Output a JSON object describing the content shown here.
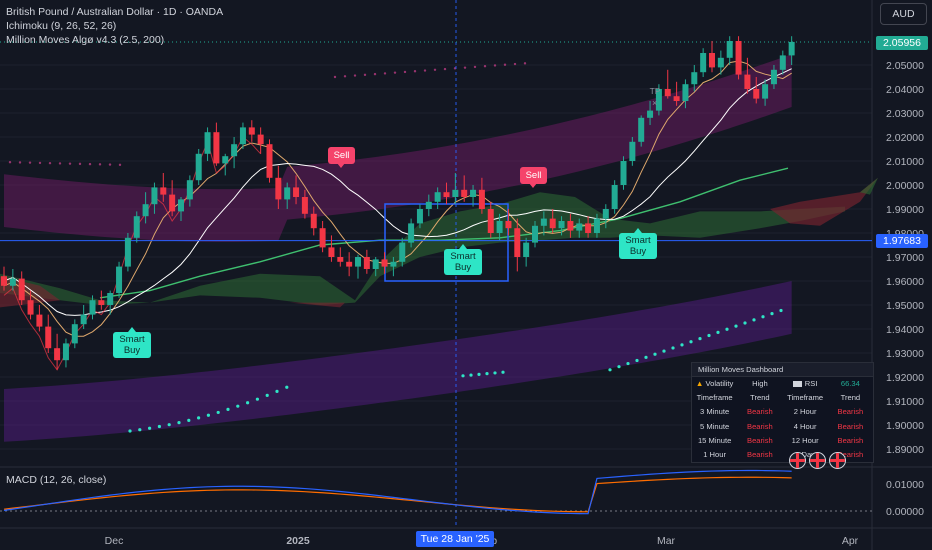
{
  "header": {
    "symbol_line": "British Pound / Australian Dollar · 1D · OANDA",
    "indicator_1": "Ichimoku (9, 26, 52, 26)",
    "indicator_2": "Million Moves Algø v4.3 (2.5, 200)",
    "currency_button": "AUD"
  },
  "macd": {
    "label": "MACD (12, 26, close)"
  },
  "crosshair": {
    "time_label": "Tue 28 Jan '25",
    "price_label": "1.97683",
    "price": 1.97683
  },
  "last_price": {
    "label": "2.05956",
    "value": 2.05956
  },
  "signals": {
    "buy_label_line1": "Smart",
    "buy_label_line2": "Buy",
    "sell_label": "Sell",
    "tp_label": "TP"
  },
  "dashboard": {
    "title": "Million Moves  Dashboard",
    "volatility_label": "Volatility",
    "volatility_value": "High",
    "rsi_label": "RSI",
    "rsi_value": "66.34",
    "col_timeframe": "Timeframe",
    "col_trend": "Trend",
    "rows": [
      {
        "tf1": "3 Minute",
        "t1": "Bearish",
        "tf2": "2 Hour",
        "t2": "Bearish"
      },
      {
        "tf1": "5 Minute",
        "t1": "Bearish",
        "tf2": "4 Hour",
        "t2": "Bearish"
      },
      {
        "tf1": "15 Minute",
        "t1": "Bearish",
        "tf2": "12 Hour",
        "t2": "Bearish"
      },
      {
        "tf1": "1 Hour",
        "t1": "Bearish",
        "tf2": "1 Day",
        "t2": "Bearish"
      }
    ]
  },
  "colors": {
    "bull": "#22ab94",
    "bear": "#f23645",
    "cloud_bull": "#2e6b34",
    "cloud_bear": "#7a2430",
    "band": "#8e1e7a",
    "accent": "#2962ff"
  },
  "chart_data": {
    "type": "candlestick",
    "price_axis": {
      "ticks": [
        "2.05000",
        "2.04000",
        "2.03000",
        "2.02000",
        "2.01000",
        "2.00000",
        "1.99000",
        "1.98000",
        "1.97000",
        "1.96000",
        "1.95000",
        "1.94000",
        "1.93000",
        "1.92000",
        "1.91000",
        "1.90000",
        "1.89000"
      ],
      "ylim": [
        1.883,
        2.063
      ]
    },
    "macd_axis": {
      "ticks": [
        "0.01000",
        "0.00000"
      ],
      "ylim": [
        -0.005,
        0.016
      ]
    },
    "time_axis": {
      "labels": [
        "Dec",
        "2025",
        "Feb",
        "Mar",
        "Apr"
      ]
    },
    "candles": [
      [
        1.962,
        1.966,
        1.956,
        1.958
      ],
      [
        1.958,
        1.965,
        1.956,
        1.961
      ],
      [
        1.961,
        1.964,
        1.95,
        1.952
      ],
      [
        1.952,
        1.956,
        1.944,
        1.946
      ],
      [
        1.946,
        1.95,
        1.939,
        1.941
      ],
      [
        1.941,
        1.946,
        1.93,
        1.932
      ],
      [
        1.932,
        1.938,
        1.923,
        1.927
      ],
      [
        1.927,
        1.936,
        1.924,
        1.934
      ],
      [
        1.934,
        1.944,
        1.932,
        1.942
      ],
      [
        1.942,
        1.95,
        1.94,
        1.946
      ],
      [
        1.946,
        1.954,
        1.944,
        1.952
      ],
      [
        1.952,
        1.956,
        1.948,
        1.95
      ],
      [
        1.95,
        1.956,
        1.946,
        1.955
      ],
      [
        1.955,
        1.968,
        1.953,
        1.966
      ],
      [
        1.966,
        1.98,
        1.964,
        1.978
      ],
      [
        1.978,
        1.989,
        1.976,
        1.987
      ],
      [
        1.987,
        1.997,
        1.984,
        1.992
      ],
      [
        1.992,
        2.001,
        1.988,
        1.999
      ],
      [
        1.999,
        2.005,
        1.993,
        1.996
      ],
      [
        1.996,
        2.002,
        1.987,
        1.989
      ],
      [
        1.989,
        1.995,
        1.985,
        1.994
      ],
      [
        1.994,
        2.004,
        1.991,
        2.002
      ],
      [
        2.002,
        2.015,
        2.0,
        2.013
      ],
      [
        2.013,
        2.024,
        2.01,
        2.022
      ],
      [
        2.022,
        2.026,
        2.008,
        2.009
      ],
      [
        2.009,
        2.013,
        2.004,
        2.012
      ],
      [
        2.012,
        2.02,
        2.007,
        2.017
      ],
      [
        2.017,
        2.026,
        2.015,
        2.024
      ],
      [
        2.024,
        2.027,
        2.018,
        2.021
      ],
      [
        2.021,
        2.024,
        2.013,
        2.017
      ],
      [
        2.017,
        2.019,
        2.001,
        2.003
      ],
      [
        2.003,
        2.008,
        1.99,
        1.994
      ],
      [
        1.994,
        2.001,
        1.99,
        1.999
      ],
      [
        1.999,
        2.004,
        1.992,
        1.995
      ],
      [
        1.995,
        1.998,
        1.986,
        1.988
      ],
      [
        1.988,
        1.991,
        1.979,
        1.982
      ],
      [
        1.982,
        1.985,
        1.972,
        1.974
      ],
      [
        1.974,
        1.979,
        1.968,
        1.97
      ],
      [
        1.97,
        1.974,
        1.966,
        1.968
      ],
      [
        1.968,
        1.972,
        1.962,
        1.966
      ],
      [
        1.966,
        1.971,
        1.961,
        1.97
      ],
      [
        1.97,
        1.973,
        1.963,
        1.965
      ],
      [
        1.965,
        1.97,
        1.962,
        1.969
      ],
      [
        1.969,
        1.972,
        1.963,
        1.966
      ],
      [
        1.966,
        1.97,
        1.962,
        1.968
      ],
      [
        1.968,
        1.978,
        1.966,
        1.976
      ],
      [
        1.976,
        1.986,
        1.974,
        1.984
      ],
      [
        1.984,
        1.992,
        1.982,
        1.99
      ],
      [
        1.99,
        1.996,
        1.987,
        1.993
      ],
      [
        1.993,
        1.999,
        1.99,
        1.997
      ],
      [
        1.997,
        2.001,
        1.992,
        1.995
      ],
      [
        1.995,
        2.005,
        1.992,
        1.998
      ],
      [
        1.998,
        2.004,
        1.993,
        1.995
      ],
      [
        1.995,
        2.0,
        1.991,
        1.998
      ],
      [
        1.998,
        2.003,
        1.988,
        1.99
      ],
      [
        1.99,
        1.993,
        1.978,
        1.98
      ],
      [
        1.98,
        1.988,
        1.977,
        1.985
      ],
      [
        1.985,
        1.99,
        1.979,
        1.982
      ],
      [
        1.982,
        1.986,
        1.964,
        1.97
      ],
      [
        1.97,
        1.978,
        1.966,
        1.976
      ],
      [
        1.976,
        1.985,
        1.974,
        1.983
      ],
      [
        1.983,
        1.989,
        1.979,
        1.986
      ],
      [
        1.986,
        1.99,
        1.98,
        1.982
      ],
      [
        1.982,
        1.987,
        1.979,
        1.985
      ],
      [
        1.985,
        1.988,
        1.978,
        1.981
      ],
      [
        1.981,
        1.986,
        1.978,
        1.984
      ],
      [
        1.984,
        1.987,
        1.978,
        1.98
      ],
      [
        1.98,
        1.988,
        1.978,
        1.986
      ],
      [
        1.986,
        1.992,
        1.982,
        1.99
      ],
      [
        1.99,
        2.002,
        1.988,
        2.0
      ],
      [
        2.0,
        2.012,
        1.998,
        2.01
      ],
      [
        2.01,
        2.02,
        2.008,
        2.018
      ],
      [
        2.018,
        2.029,
        2.016,
        2.028
      ],
      [
        2.028,
        2.035,
        2.025,
        2.031
      ],
      [
        2.031,
        2.042,
        2.029,
        2.04
      ],
      [
        2.04,
        2.048,
        2.036,
        2.037
      ],
      [
        2.037,
        2.043,
        2.033,
        2.035
      ],
      [
        2.035,
        2.044,
        2.032,
        2.042
      ],
      [
        2.042,
        2.05,
        2.039,
        2.047
      ],
      [
        2.047,
        2.057,
        2.045,
        2.055
      ],
      [
        2.055,
        2.06,
        2.047,
        2.049
      ],
      [
        2.049,
        2.056,
        2.046,
        2.053
      ],
      [
        2.053,
        2.062,
        2.05,
        2.06
      ],
      [
        2.06,
        2.062,
        2.044,
        2.046
      ],
      [
        2.046,
        2.053,
        2.038,
        2.04
      ],
      [
        2.04,
        2.045,
        2.034,
        2.036
      ],
      [
        2.036,
        2.044,
        2.033,
        2.042
      ],
      [
        2.042,
        2.05,
        2.04,
        2.048
      ],
      [
        2.048,
        2.056,
        2.046,
        2.054
      ],
      [
        2.054,
        2.062,
        2.05,
        2.0596
      ]
    ],
    "price_levels": [
      {
        "name": "Last",
        "value": 2.05956
      },
      {
        "name": "Crosshair",
        "value": 1.97683
      }
    ]
  }
}
